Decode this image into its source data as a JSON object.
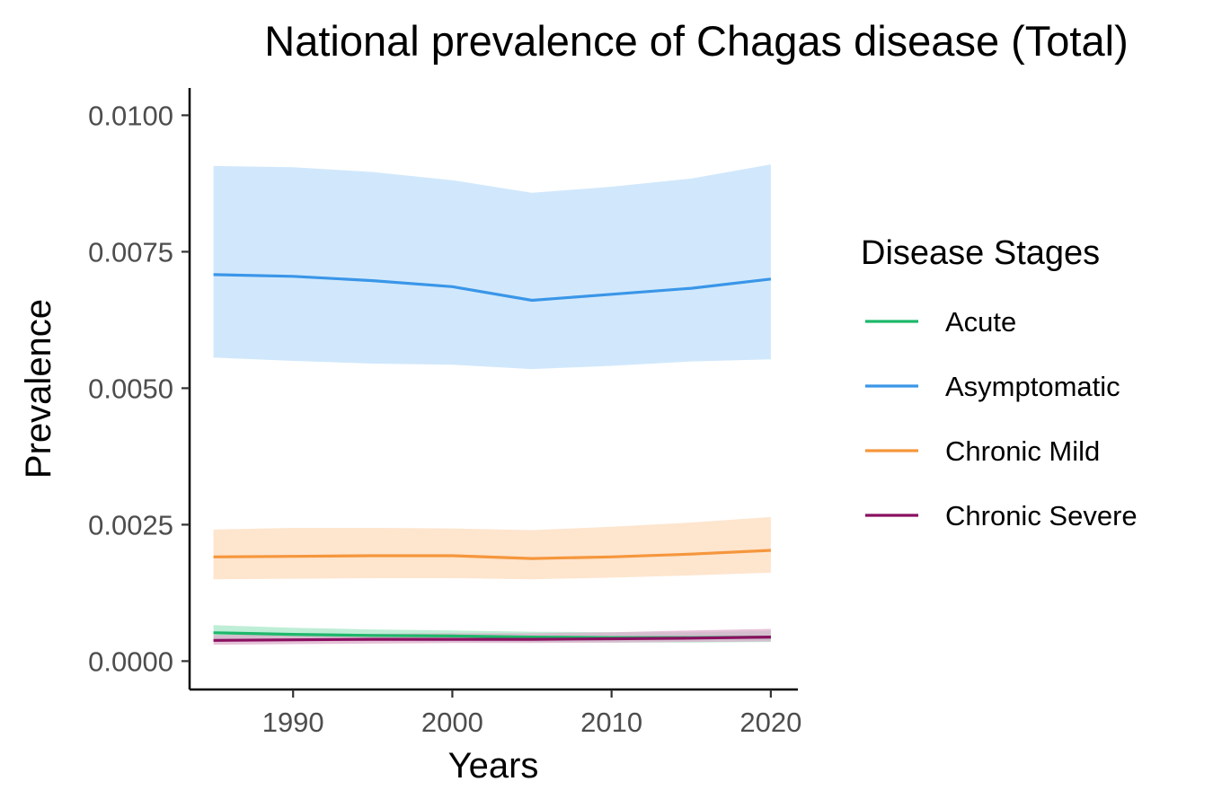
{
  "chart_data": {
    "type": "line",
    "title": "National prevalence of Chagas disease (Total)",
    "xlabel": "Years",
    "ylabel": "Prevalence",
    "xlim": [
      1983.5,
      2021.7
    ],
    "ylim": [
      -0.00052,
      0.0105
    ],
    "x_ticks": [
      1990,
      2000,
      2010,
      2020
    ],
    "x_tick_labels": [
      "1990",
      "2000",
      "2010",
      "2020"
    ],
    "y_ticks": [
      0,
      0.0025,
      0.005,
      0.0075,
      0.01
    ],
    "y_tick_labels": [
      "0.0000",
      "0.0025",
      "0.0050",
      "0.0075",
      "0.0100"
    ],
    "grid": false,
    "legend": {
      "title": "Disease Stages",
      "position": "right"
    },
    "x": [
      1985,
      1990,
      1995,
      2000,
      2005,
      2010,
      2015,
      2020
    ],
    "series": [
      {
        "name": "Acute",
        "color": "#1db86a",
        "band_color": "#a9e8c8",
        "values": [
          0.00052,
          0.00049,
          0.00047,
          0.00046,
          0.00044,
          0.00043,
          0.00043,
          0.00044
        ],
        "lower": [
          0.0004,
          0.00038,
          0.00037,
          0.00036,
          0.00035,
          0.00034,
          0.00034,
          0.00035
        ],
        "upper": [
          0.00066,
          0.00061,
          0.00058,
          0.00056,
          0.00054,
          0.00053,
          0.00053,
          0.00055
        ]
      },
      {
        "name": "Asymptomatic",
        "color": "#3a96e8",
        "band_color": "#c2e0fb",
        "values": [
          0.00708,
          0.00705,
          0.00697,
          0.00686,
          0.00661,
          0.00672,
          0.00683,
          0.007
        ],
        "lower": [
          0.00556,
          0.0055,
          0.00545,
          0.00543,
          0.00535,
          0.00541,
          0.00549,
          0.00553
        ],
        "upper": [
          0.00907,
          0.00905,
          0.00896,
          0.00881,
          0.00858,
          0.00869,
          0.00884,
          0.0091
        ]
      },
      {
        "name": "Chronic Mild",
        "color": "#f5963c",
        "band_color": "#fddcbe",
        "values": [
          0.00191,
          0.00192,
          0.00193,
          0.00193,
          0.00188,
          0.00191,
          0.00196,
          0.00203
        ],
        "lower": [
          0.0015,
          0.00151,
          0.00152,
          0.00152,
          0.0015,
          0.00153,
          0.00157,
          0.00162
        ],
        "upper": [
          0.00241,
          0.00244,
          0.00244,
          0.00243,
          0.0024,
          0.00246,
          0.00254,
          0.00264
        ]
      },
      {
        "name": "Chronic Severe",
        "color": "#8b1060",
        "band_color": "#dcaecb",
        "values": [
          0.00038,
          0.00039,
          0.0004,
          0.0004,
          0.0004,
          0.00041,
          0.00042,
          0.00044
        ],
        "lower": [
          0.0003,
          0.00031,
          0.00032,
          0.00033,
          0.00033,
          0.00034,
          0.00035,
          0.00036
        ],
        "upper": [
          0.00048,
          0.00049,
          0.0005,
          0.00051,
          0.00051,
          0.00053,
          0.00056,
          0.00059
        ]
      }
    ]
  }
}
